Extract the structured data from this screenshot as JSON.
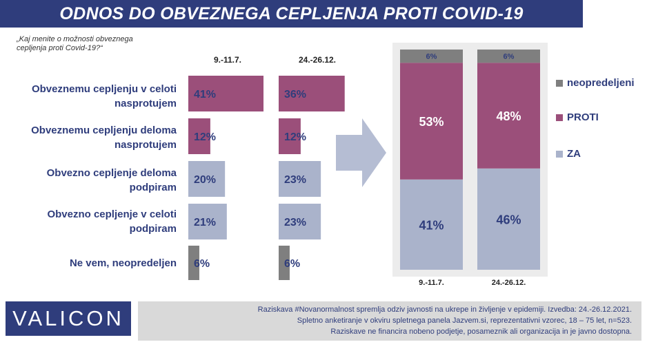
{
  "title": "ODNOS DO OBVEZNEGA CEPLJENJA PROTI COVID-19",
  "question": "„Kaj menite o možnosti obveznega cepljenja proti Covid-19?“",
  "colors": {
    "banner": "#2f3d7c",
    "text_blue": "#2f3d7c",
    "against": "#9b4f7a",
    "for": "#aab3cb",
    "undecided": "#7f7f7f",
    "arrow": "#b5bdd3"
  },
  "chart_data": [
    {
      "type": "bar",
      "orientation": "horizontal",
      "categories": [
        "Obveznemu cepljenju v celoti nasprotujem",
        "Obveznemu cepljenju deloma nasprotujem",
        "Obvezno cepljenje deloma podpiram",
        "Obvezno cepljenje v celoti podpiram",
        "Ne vem, neopredeljen"
      ],
      "series": [
        {
          "name": "9.-11.7.",
          "values": [
            41,
            12,
            20,
            21,
            6
          ],
          "labels": [
            "41%",
            "12%",
            "20%",
            "21%",
            "6%"
          ]
        },
        {
          "name": "24.-26.12.",
          "values": [
            36,
            12,
            23,
            23,
            6
          ],
          "labels": [
            "36%",
            "12%",
            "23%",
            "23%",
            "6%"
          ]
        }
      ],
      "category_colors": [
        "#9b4f7a",
        "#9b4f7a",
        "#aab3cb",
        "#aab3cb",
        "#7f7f7f"
      ]
    },
    {
      "type": "bar",
      "stacked": true,
      "categories": [
        "9.-11.7.",
        "24.-26.12."
      ],
      "series": [
        {
          "name": "ZA",
          "values": [
            41,
            46
          ],
          "labels": [
            "41%",
            "46%"
          ],
          "color": "#aab3cb"
        },
        {
          "name": "PROTI",
          "values": [
            53,
            48
          ],
          "labels": [
            "53%",
            "48%"
          ],
          "color": "#9b4f7a"
        },
        {
          "name": "neopredeljeni",
          "values": [
            6,
            6
          ],
          "labels": [
            "6%",
            "6%"
          ],
          "color": "#7f7f7f"
        }
      ],
      "ylim": [
        0,
        100
      ],
      "legend_order": [
        "neopredeljeni",
        "PROTI",
        "ZA"
      ],
      "legend_position": "right"
    }
  ],
  "footer": {
    "logo": "VALICON",
    "lines": [
      "Raziskava #Novanormalnost spremlja odziv javnosti na ukrepe in življenje v epidemiji. Izvedba: 24.-26.12.2021.",
      "Spletno anketiranje v okviru spletnega panela Jazvem.si, reprezentativni vzorec, 18 – 75 let, n=523.",
      "Raziskave ne financira nobeno podjetje, posameznik ali organizacija in je javno dostopna."
    ]
  }
}
